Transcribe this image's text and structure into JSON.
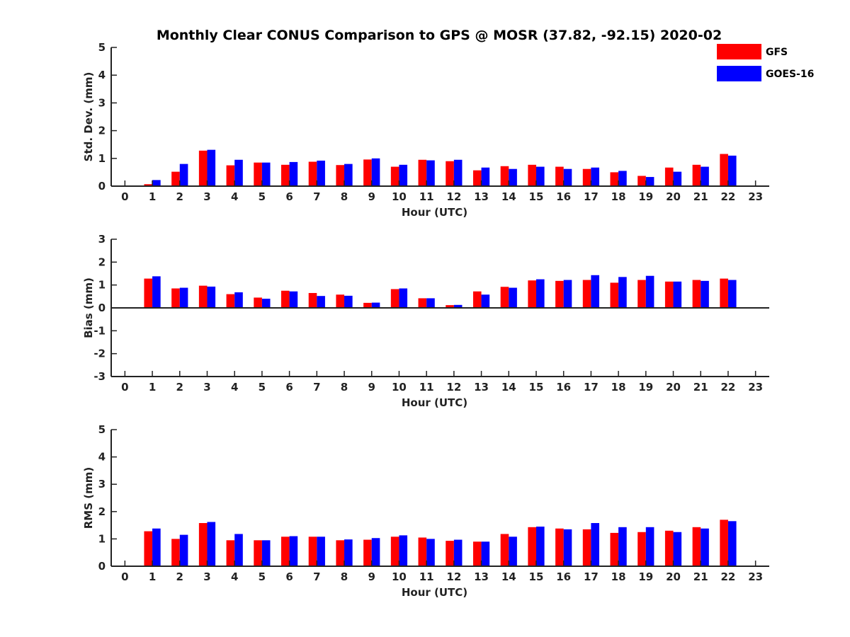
{
  "figure": {
    "title": "Monthly Clear CONUS Comparison to GPS @ MOSR (37.82, -92.15) 2020-02"
  },
  "legend": {
    "placement": "top-right",
    "entries": [
      {
        "name": "GFS",
        "color": "#ff0000"
      },
      {
        "name": "GOES-16",
        "color": "#0000ff"
      }
    ]
  },
  "chart_data": [
    {
      "type": "bar",
      "xlabel": "Hour (UTC)",
      "ylabel": "Std. Dev. (mm)",
      "ylim": [
        0,
        5
      ],
      "yticks": [
        0,
        1,
        2,
        3,
        4,
        5
      ],
      "xlim": [
        -0.5,
        23.5
      ],
      "categories": [
        0,
        1,
        2,
        3,
        4,
        5,
        6,
        7,
        8,
        9,
        10,
        11,
        12,
        13,
        14,
        15,
        16,
        17,
        18,
        19,
        20,
        21,
        22,
        23
      ],
      "series": [
        {
          "name": "GFS",
          "color": "#ff0000",
          "values": [
            null,
            0.07,
            0.52,
            1.28,
            0.75,
            0.85,
            0.77,
            0.88,
            0.76,
            0.96,
            0.7,
            0.95,
            0.9,
            0.57,
            0.72,
            0.77,
            0.7,
            0.62,
            0.5,
            0.37,
            0.67,
            0.77,
            1.16,
            null
          ]
        },
        {
          "name": "GOES-16",
          "color": "#0000ff",
          "values": [
            null,
            0.22,
            0.8,
            1.31,
            0.95,
            0.85,
            0.87,
            0.92,
            0.8,
            1.0,
            0.77,
            0.93,
            0.95,
            0.67,
            0.62,
            0.7,
            0.62,
            0.67,
            0.55,
            0.33,
            0.52,
            0.7,
            1.1,
            null
          ]
        }
      ]
    },
    {
      "type": "bar",
      "xlabel": "Hour (UTC)",
      "ylabel": "Bias (mm)",
      "ylim": [
        -3,
        3
      ],
      "yticks": [
        -3,
        -2,
        -1,
        0,
        1,
        2,
        3
      ],
      "xlim": [
        -0.5,
        23.5
      ],
      "categories": [
        0,
        1,
        2,
        3,
        4,
        5,
        6,
        7,
        8,
        9,
        10,
        11,
        12,
        13,
        14,
        15,
        16,
        17,
        18,
        19,
        20,
        21,
        22,
        23
      ],
      "series": [
        {
          "name": "GFS",
          "color": "#ff0000",
          "values": [
            null,
            1.28,
            0.85,
            0.97,
            0.6,
            0.45,
            0.75,
            0.65,
            0.58,
            0.22,
            0.82,
            0.42,
            0.12,
            0.72,
            0.92,
            1.2,
            1.18,
            1.22,
            1.1,
            1.22,
            1.15,
            1.22,
            1.28,
            null
          ]
        },
        {
          "name": "GOES-16",
          "color": "#0000ff",
          "values": [
            null,
            1.38,
            0.88,
            0.93,
            0.68,
            0.4,
            0.72,
            0.52,
            0.53,
            0.23,
            0.85,
            0.42,
            0.13,
            0.58,
            0.88,
            1.25,
            1.22,
            1.43,
            1.35,
            1.4,
            1.15,
            1.18,
            1.22,
            null
          ]
        }
      ]
    },
    {
      "type": "bar",
      "xlabel": "Hour (UTC)",
      "ylabel": "RMS (mm)",
      "ylim": [
        0,
        5
      ],
      "yticks": [
        0,
        1,
        2,
        3,
        4,
        5
      ],
      "xlim": [
        -0.5,
        23.5
      ],
      "categories": [
        0,
        1,
        2,
        3,
        4,
        5,
        6,
        7,
        8,
        9,
        10,
        11,
        12,
        13,
        14,
        15,
        16,
        17,
        18,
        19,
        20,
        21,
        22,
        23
      ],
      "series": [
        {
          "name": "GFS",
          "color": "#ff0000",
          "values": [
            null,
            1.28,
            1.0,
            1.58,
            0.95,
            0.95,
            1.08,
            1.08,
            0.95,
            0.97,
            1.08,
            1.05,
            0.93,
            0.9,
            1.18,
            1.43,
            1.38,
            1.35,
            1.22,
            1.25,
            1.3,
            1.43,
            1.7,
            null
          ]
        },
        {
          "name": "GOES-16",
          "color": "#0000ff",
          "values": [
            null,
            1.38,
            1.15,
            1.62,
            1.18,
            0.95,
            1.1,
            1.08,
            0.98,
            1.03,
            1.13,
            1.0,
            0.97,
            0.9,
            1.08,
            1.45,
            1.35,
            1.58,
            1.43,
            1.43,
            1.25,
            1.38,
            1.65,
            null
          ]
        }
      ]
    }
  ]
}
